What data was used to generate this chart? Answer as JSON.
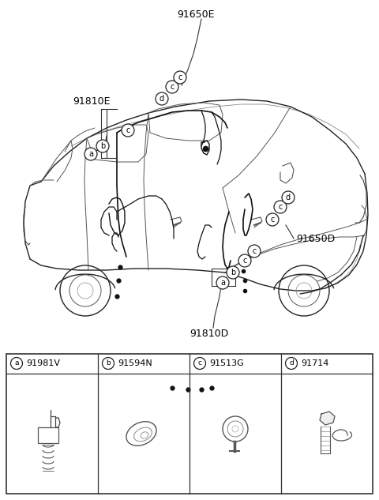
{
  "bg_color": "#ffffff",
  "label_91650E": "91650E",
  "label_91810E": "91810E",
  "label_91810D": "91810D",
  "label_91650D": "91650D",
  "parts": [
    {
      "letter": "a",
      "part_num": "91981V"
    },
    {
      "letter": "b",
      "part_num": "91594N"
    },
    {
      "letter": "c",
      "part_num": "91513G"
    },
    {
      "letter": "d",
      "part_num": "91714"
    }
  ],
  "callout_color": "#222222",
  "line_color": "#222222",
  "table_border_color": "#333333",
  "font_size_label": 9,
  "font_size_part": 8,
  "font_size_callout": 7
}
